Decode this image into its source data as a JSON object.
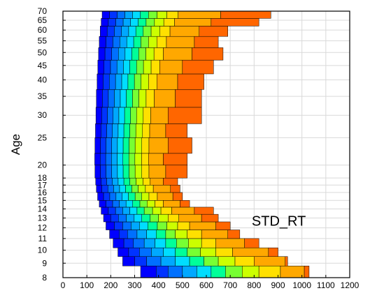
{
  "chart_data": {
    "type": "area",
    "ylabel": "Age",
    "xlabel": "",
    "annotation": "STD_RT",
    "xlim": [
      0,
      1200
    ],
    "ylim": [
      8,
      70
    ],
    "y_scale": "log",
    "grid": true,
    "x_ticks": [
      0,
      100,
      200,
      300,
      400,
      500,
      600,
      700,
      800,
      900,
      1000,
      1100,
      1200
    ],
    "y_ticks": [
      8,
      9,
      10,
      11,
      12,
      13,
      14,
      15,
      16,
      17,
      18,
      20,
      25,
      30,
      35,
      40,
      45,
      50,
      55,
      60,
      65,
      70
    ],
    "band_colors": [
      "#0000ff",
      "#0033ff",
      "#0070ff",
      "#00a8ff",
      "#00ddff",
      "#00ff99",
      "#77ff33",
      "#ccff00",
      "#ffe000",
      "#ffa800",
      "#ff6600",
      "#ff1a00",
      "#ee0000"
    ],
    "rows": [
      {
        "age_low": 8.0,
        "age_high": 8.8,
        "edges": [
          325,
          390,
          440,
          500,
          560,
          620,
          680,
          750,
          820,
          910,
          1010
        ]
      },
      {
        "age_low": 8.8,
        "age_high": 9.5,
        "edges": [
          250,
          300,
          350,
          410,
          470,
          530,
          590,
          650,
          720,
          800,
          930
        ]
      },
      {
        "age_low": 9.5,
        "age_high": 10.2,
        "edges": [
          230,
          275,
          320,
          370,
          420,
          470,
          520,
          575,
          640,
          710,
          860
        ]
      },
      {
        "age_low": 10.2,
        "age_high": 11.0,
        "edges": [
          210,
          255,
          295,
          340,
          385,
          430,
          475,
          525,
          580,
          640,
          760
        ]
      },
      {
        "age_low": 11.0,
        "age_high": 11.8,
        "edges": [
          195,
          235,
          270,
          310,
          350,
          390,
          430,
          470,
          520,
          580,
          690
        ]
      },
      {
        "age_low": 11.8,
        "age_high": 12.6,
        "edges": [
          180,
          215,
          250,
          285,
          320,
          355,
          395,
          435,
          480,
          530,
          640
        ]
      },
      {
        "age_low": 12.6,
        "age_high": 13.4,
        "edges": [
          170,
          200,
          232,
          265,
          298,
          330,
          365,
          400,
          440,
          485,
          580
        ]
      },
      {
        "age_low": 13.4,
        "age_high": 14.2,
        "edges": [
          160,
          190,
          220,
          250,
          280,
          310,
          340,
          375,
          410,
          455,
          550
        ]
      },
      {
        "age_low": 14.2,
        "age_high": 15.0,
        "edges": [
          152,
          180,
          208,
          236,
          264,
          292,
          322,
          352,
          385,
          420,
          490
        ]
      },
      {
        "age_low": 15.0,
        "age_high": 16.0,
        "edges": [
          145,
          170,
          196,
          222,
          248,
          274,
          302,
          330,
          360,
          395,
          460
        ]
      },
      {
        "age_low": 16.0,
        "age_high": 17.0,
        "edges": [
          140,
          163,
          188,
          212,
          237,
          262,
          288,
          315,
          345,
          378,
          450
        ]
      },
      {
        "age_low": 17.0,
        "age_high": 18.0,
        "edges": [
          137,
          160,
          183,
          207,
          231,
          255,
          280,
          306,
          335,
          365,
          420
        ]
      },
      {
        "age_low": 18.0,
        "age_high": 20.0,
        "edges": [
          134,
          157,
          180,
          204,
          228,
          252,
          277,
          302,
          330,
          360,
          430
        ]
      },
      {
        "age_low": 20.0,
        "age_high": 22.0,
        "edges": [
          133,
          156,
          179,
          203,
          227,
          251,
          276,
          301,
          329,
          358,
          420
        ]
      },
      {
        "age_low": 22.0,
        "age_high": 25.0,
        "edges": [
          134,
          157,
          180,
          204,
          228,
          252,
          277,
          302,
          330,
          360,
          440
        ]
      },
      {
        "age_low": 25.0,
        "age_high": 28.0,
        "edges": [
          136,
          159,
          183,
          207,
          231,
          255,
          280,
          305,
          333,
          363,
          430
        ]
      },
      {
        "age_low": 28.0,
        "age_high": 32.0,
        "edges": [
          138,
          162,
          186,
          210,
          234,
          258,
          283,
          308,
          336,
          367,
          440
        ]
      },
      {
        "age_low": 32.0,
        "age_high": 37.0,
        "edges": [
          140,
          165,
          190,
          215,
          240,
          265,
          291,
          318,
          348,
          382,
          470
        ]
      },
      {
        "age_low": 37.0,
        "age_high": 42.0,
        "edges": [
          143,
          168,
          194,
          220,
          246,
          272,
          299,
          327,
          358,
          393,
          480
        ]
      },
      {
        "age_low": 42.0,
        "age_high": 47.0,
        "edges": [
          146,
          172,
          199,
          226,
          253,
          280,
          308,
          337,
          369,
          405,
          500
        ]
      },
      {
        "age_low": 47.0,
        "age_high": 52.0,
        "edges": [
          149,
          176,
          204,
          232,
          260,
          288,
          317,
          347,
          381,
          420,
          540
        ]
      },
      {
        "age_low": 52.0,
        "age_high": 57.0,
        "edges": [
          152,
          180,
          209,
          238,
          267,
          296,
          326,
          358,
          393,
          433,
          550
        ]
      },
      {
        "age_low": 57.0,
        "age_high": 62.0,
        "edges": [
          156,
          185,
          215,
          245,
          275,
          305,
          336,
          369,
          406,
          448,
          570
        ]
      },
      {
        "age_low": 62.0,
        "age_high": 66.0,
        "edges": [
          160,
          190,
          221,
          252,
          283,
          315,
          348,
          383,
          422,
          467,
          620
        ]
      },
      {
        "age_low": 66.0,
        "age_high": 70.0,
        "edges": [
          164,
          195,
          227,
          259,
          291,
          324,
          358,
          394,
          435,
          482,
          660
        ]
      }
    ],
    "row_max": [
      1030,
      940,
      900,
      820,
      740,
      700,
      650,
      630,
      530,
      500,
      490,
      480,
      520,
      520,
      540,
      520,
      580,
      580,
      590,
      630,
      670,
      650,
      690,
      820,
      870
    ]
  }
}
